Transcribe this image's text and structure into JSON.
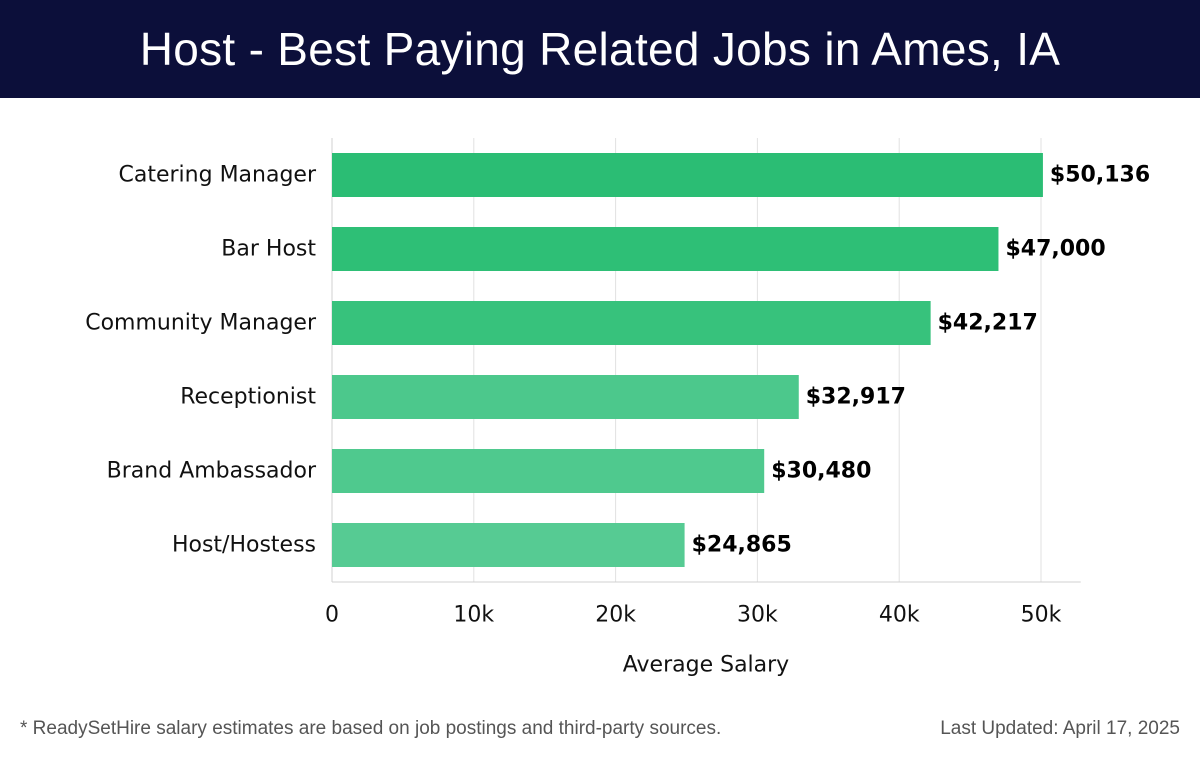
{
  "header": {
    "title": "Host - Best Paying Related Jobs in Ames, IA"
  },
  "chart_data": {
    "type": "bar",
    "orientation": "horizontal",
    "categories": [
      "Catering Manager",
      "Bar Host",
      "Community Manager",
      "Receptionist",
      "Brand Ambassador",
      "Host/Hostess"
    ],
    "values": [
      50136,
      47000,
      42217,
      32917,
      30480,
      24865
    ],
    "value_labels": [
      "$50,136",
      "$47,000",
      "$42,217",
      "$32,917",
      "$30,480",
      "$24,865"
    ],
    "bar_colors": [
      "#2bbd74",
      "#2ebf76",
      "#37c27c",
      "#4cc88c",
      "#4fc98e",
      "#56cb93"
    ],
    "xlabel": "Average Salary",
    "ylabel": "",
    "xlim": [
      0,
      52800
    ],
    "xticks": [
      0,
      10000,
      20000,
      30000,
      40000,
      50000
    ],
    "xtick_labels": [
      "0",
      "10k",
      "20k",
      "30k",
      "40k",
      "50k"
    ],
    "grid": "vertical",
    "legend": "none"
  },
  "footer": {
    "note": "* ReadySetHire salary estimates are based on job postings and third-party sources.",
    "updated": "Last Updated: April 17, 2025"
  }
}
